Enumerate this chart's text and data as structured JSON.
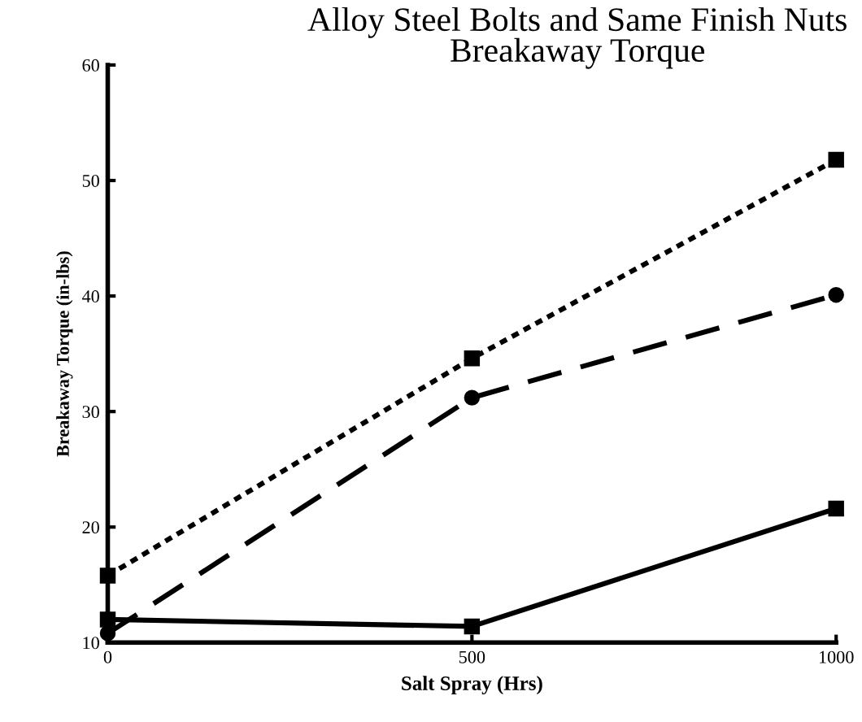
{
  "chart_data": {
    "type": "line",
    "title": "Alloy Steel Bolts and Same Finish Nuts\nBreakaway Torque",
    "xlabel": "Salt Spray (Hrs)",
    "ylabel": "Breakaway Torque (in-lbs)",
    "x": [
      0,
      500,
      1000
    ],
    "series": [
      {
        "color": "#000000",
        "values": [
          15.8,
          34.6,
          51.8
        ],
        "marker": "square",
        "line_style": "dotted"
      },
      {
        "color": "#000000",
        "values": [
          10.8,
          31.2,
          40.1
        ],
        "marker": "circle",
        "line_style": "dashed"
      },
      {
        "color": "#000000",
        "values": [
          12.0,
          11.4,
          21.6
        ],
        "marker": "square",
        "line_style": "solid"
      }
    ],
    "xlim": [
      0,
      1000
    ],
    "ylim": [
      10,
      60
    ],
    "xticks": [
      0,
      500,
      1000
    ],
    "yticks": [
      10,
      20,
      30,
      40,
      50,
      60
    ],
    "grid": false,
    "legend": false
  }
}
